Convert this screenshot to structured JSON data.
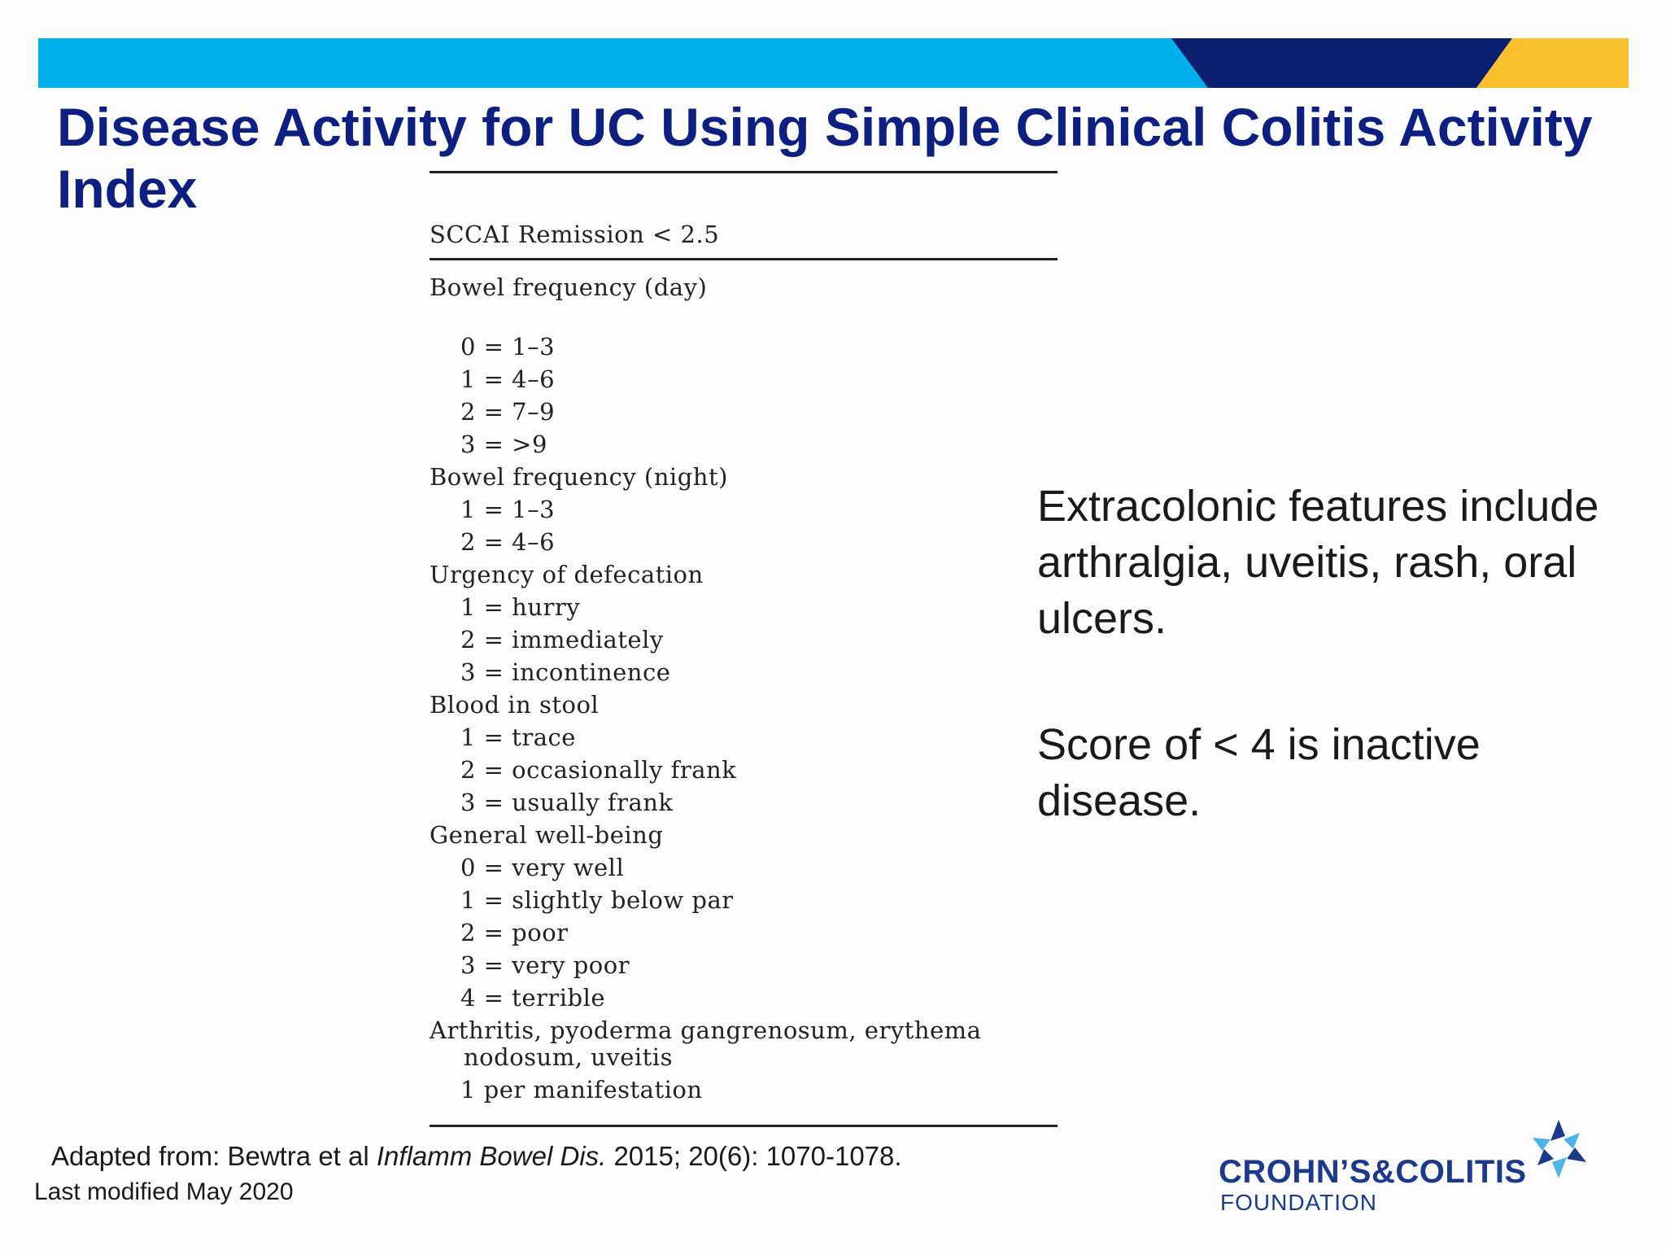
{
  "title": "Disease Activity for UC Using Simple Clinical Colitis Activity Index",
  "table": {
    "header": "SCCAI Remission < 2.5",
    "bowel_day": {
      "heading": "Bowel frequency (day)",
      "items": [
        "0 = 1–3",
        "1 = 4–6",
        "2 = 7–9",
        "3 = >9"
      ]
    },
    "bowel_night": {
      "heading": "Bowel frequency (night)",
      "items": [
        "1 = 1–3",
        "2 = 4–6"
      ]
    },
    "urgency": {
      "heading": "Urgency of defecation",
      "items": [
        "1 = hurry",
        "2 = immediately",
        "3 = incontinence"
      ]
    },
    "blood": {
      "heading": "Blood in stool",
      "items": [
        "1 = trace",
        "2 = occasionally frank",
        "3 = usually frank"
      ]
    },
    "wellbeing": {
      "heading": "General well-being",
      "items": [
        "0 = very well",
        "1 = slightly below par",
        "2 = poor",
        "3 = very poor",
        "4 = terrible"
      ]
    },
    "extra": {
      "heading": "Arthritis, pyoderma gangrenosum, erythema",
      "heading_cont": "nodosum, uveitis",
      "items": [
        "1 per manifestation"
      ]
    }
  },
  "side_notes": {
    "extracolonic": "Extracolonic features include arthralgia, uveitis, rash, oral ulcers.",
    "score": "Score of < 4 is inactive disease."
  },
  "citation": {
    "prefix": "Adapted from: Bewtra et al ",
    "journal": "Inflamm Bowel Dis.",
    "suffix": " 2015; 20(6): 1070-1078."
  },
  "last_modified": "Last modified May 2020",
  "logo": {
    "name": "CROHN’S&COLITIS",
    "sub": "FOUNDATION"
  },
  "colors": {
    "banner_light_blue": "#00b0ec",
    "banner_navy": "#0a1f6e",
    "banner_gold": "#fbc02d",
    "title_navy": "#0d1f80",
    "logo_blue": "#1b3a8c"
  }
}
